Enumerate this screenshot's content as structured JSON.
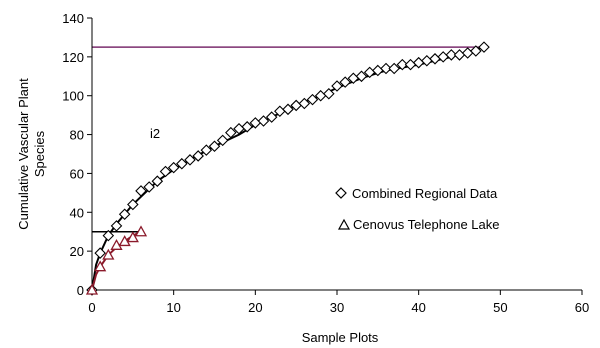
{
  "chart_data": {
    "type": "scatter",
    "xlabel": "Sample Plots",
    "ylabel": "Cumulative Vascular Plant Species",
    "xlim": [
      0,
      60
    ],
    "ylim": [
      0,
      140
    ],
    "x_ticks": [
      0,
      10,
      20,
      30,
      40,
      50,
      60
    ],
    "y_ticks": [
      0,
      20,
      40,
      60,
      80,
      100,
      120,
      140
    ],
    "grid": false,
    "legend_position": "right",
    "annotation": "i2",
    "series": [
      {
        "name": "Combined Regional Data",
        "marker": "diamond",
        "color": "#000000",
        "x": [
          0,
          1,
          2,
          3,
          4,
          5,
          6,
          7,
          8,
          9,
          10,
          11,
          12,
          13,
          14,
          15,
          16,
          17,
          18,
          19,
          20,
          21,
          22,
          23,
          24,
          25,
          26,
          27,
          28,
          29,
          30,
          31,
          32,
          33,
          34,
          35,
          36,
          37,
          38,
          39,
          40,
          41,
          42,
          43,
          44,
          45,
          46,
          47,
          48
        ],
        "y": [
          0,
          19,
          28,
          33,
          39,
          44,
          51,
          53,
          56,
          61,
          63,
          65,
          67,
          69,
          72,
          74,
          77,
          81,
          83,
          84,
          86,
          87,
          89,
          92,
          93,
          95,
          96,
          98,
          100,
          101,
          105,
          107,
          109,
          110,
          112,
          113,
          114,
          114,
          116,
          116,
          117,
          118,
          119,
          120,
          121,
          121,
          122,
          123,
          125
        ]
      },
      {
        "name": "Cenovus Telephone Lake",
        "marker": "triangle",
        "color": "#8b1a2b",
        "x": [
          0,
          1,
          2,
          3,
          4,
          5,
          6
        ],
        "y": [
          0,
          12,
          18,
          23,
          25,
          27,
          30
        ]
      }
    ],
    "trend_lines": [
      {
        "series": "Combined Regional Data",
        "color": "#000000",
        "shape": "fit",
        "x": [
          0,
          0.5,
          1,
          2,
          3,
          4,
          5,
          6,
          8,
          10,
          12,
          15,
          18,
          20,
          22,
          25,
          28,
          30,
          33,
          36,
          40,
          44,
          48
        ],
        "y": [
          0,
          13,
          19,
          28,
          34,
          39,
          44,
          48,
          56,
          62,
          67,
          74,
          80,
          85,
          89,
          95,
          100,
          104,
          109,
          113,
          116,
          120,
          125
        ]
      },
      {
        "series": "Cenovus Telephone Lake",
        "color": "#8b1a2b",
        "shape": "fit",
        "x": [
          0,
          0.5,
          1,
          2,
          3,
          4,
          5,
          6
        ],
        "y": [
          0,
          8,
          12,
          18,
          22,
          25,
          28,
          30
        ]
      }
    ],
    "reference_lines": [
      {
        "color": "#7b2d6e",
        "x": [
          0,
          48
        ],
        "y": [
          125,
          125
        ]
      },
      {
        "color": "#000000",
        "x": [
          0,
          6
        ],
        "y": [
          30,
          30
        ]
      }
    ]
  }
}
